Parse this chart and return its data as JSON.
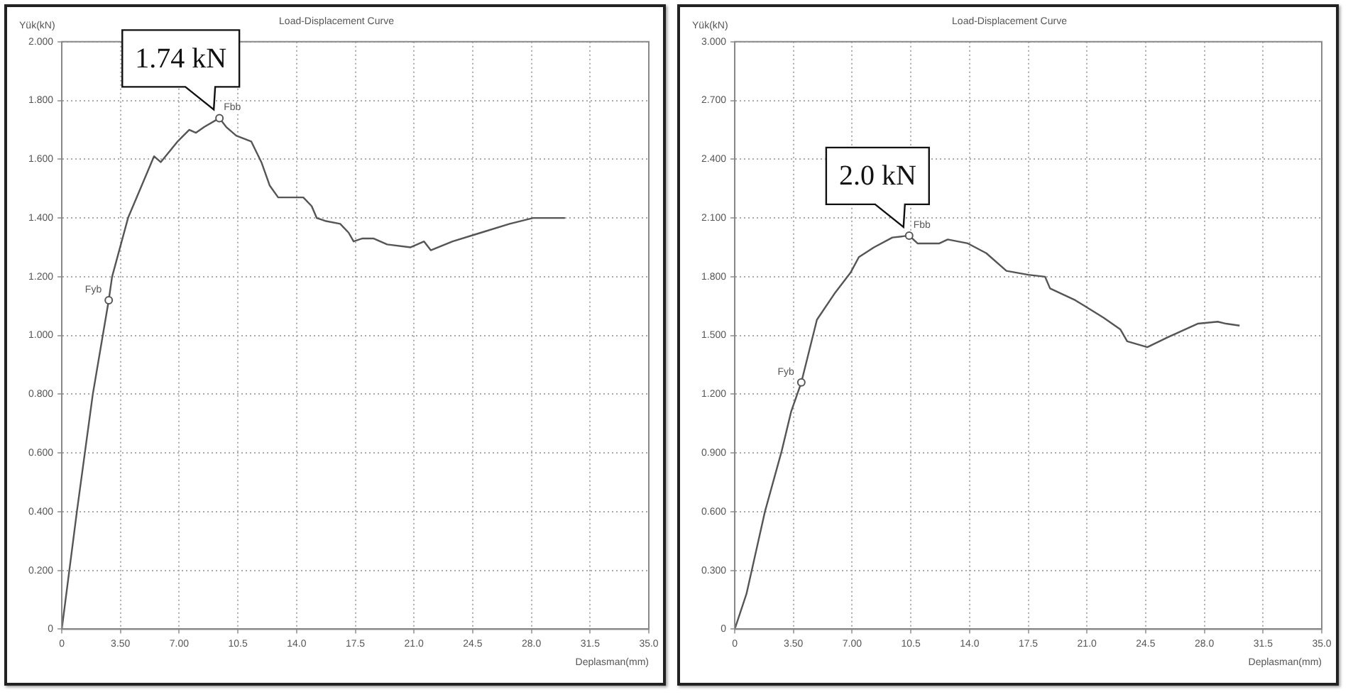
{
  "chart_data": [
    {
      "type": "line",
      "title": "Load-Displacement Curve",
      "xlabel": "Deplasman(mm)",
      "ylabel": "Yük(kN)",
      "marker": "none",
      "grid": true,
      "xlim": [
        0,
        35
      ],
      "xticks": [
        0,
        {
          "value": 3.5,
          "label": "3.50"
        },
        {
          "value": 7,
          "label": "7.00"
        },
        10.5,
        {
          "value": 14,
          "label": "14.0"
        },
        17.5,
        {
          "value": 21,
          "label": "21.0"
        },
        24.5,
        {
          "value": 28,
          "label": "28.0"
        },
        31.5,
        {
          "value": 35,
          "label": "35.0"
        }
      ],
      "ylim": [
        0,
        2
      ],
      "yticks": [
        0,
        {
          "value": 0.2,
          "label": "0.200"
        },
        {
          "value": 0.4,
          "label": "0.400"
        },
        {
          "value": 0.6,
          "label": "0.600"
        },
        {
          "value": 0.8,
          "label": "0.800"
        },
        {
          "value": 1,
          "label": "1.000"
        },
        {
          "value": 1.2,
          "label": "1.200"
        },
        {
          "value": 1.4,
          "label": "1.400"
        },
        {
          "value": 1.6,
          "label": "1.600"
        },
        {
          "value": 1.8,
          "label": "1.800"
        },
        {
          "value": 2,
          "label": "2.000"
        }
      ],
      "series": [
        {
          "color": "#555555",
          "x": [
            0,
            0.9,
            1.85,
            2.8,
            3.0,
            3.95,
            5.5,
            5.9,
            6.9,
            7.6,
            8.0,
            8.5,
            9.4,
            9.8,
            10.4,
            11.3,
            11.9,
            12.4,
            12.9,
            13.5,
            14.4,
            14.9,
            15.2,
            15.7,
            16.6,
            17.1,
            17.4,
            17.9,
            18.6,
            19.4,
            20.8,
            21.6,
            22.0,
            23.3,
            25.0,
            26.7,
            28.1,
            30.0
          ],
          "values": [
            0,
            0.4,
            0.8,
            1.12,
            1.2,
            1.4,
            1.61,
            1.59,
            1.66,
            1.7,
            1.69,
            1.71,
            1.74,
            1.71,
            1.68,
            1.66,
            1.59,
            1.51,
            1.47,
            1.47,
            1.47,
            1.44,
            1.4,
            1.39,
            1.38,
            1.35,
            1.32,
            1.33,
            1.33,
            1.31,
            1.3,
            1.32,
            1.29,
            1.32,
            1.35,
            1.38,
            1.4,
            1.4
          ]
        }
      ],
      "annotations": [
        {
          "text": "1.74 kN",
          "x": 9.4,
          "y": 1.74
        },
        {
          "text": "Fbb",
          "x": 9.4,
          "y": 1.74
        },
        {
          "text": "Fyb",
          "x": 2.8,
          "y": 1.12
        }
      ]
    },
    {
      "type": "line",
      "title": "Load-Displacement Curve",
      "xlabel": "Deplasman(mm)",
      "ylabel": "Yük(kN)",
      "marker": "none",
      "grid": true,
      "xlim": [
        0,
        35
      ],
      "xticks": [
        0,
        {
          "value": 3.5,
          "label": "3.50"
        },
        {
          "value": 7,
          "label": "7.00"
        },
        10.5,
        {
          "value": 14,
          "label": "14.0"
        },
        17.5,
        {
          "value": 21,
          "label": "21.0"
        },
        24.5,
        {
          "value": 28,
          "label": "28.0"
        },
        31.5,
        {
          "value": 35,
          "label": "35.0"
        }
      ],
      "ylim": [
        0,
        3
      ],
      "yticks": [
        0,
        {
          "value": 0.3,
          "label": "0.300"
        },
        {
          "value": 0.6,
          "label": "0.600"
        },
        {
          "value": 0.9,
          "label": "0.900"
        },
        {
          "value": 1.2,
          "label": "1.200"
        },
        {
          "value": 1.5,
          "label": "1.500"
        },
        {
          "value": 1.8,
          "label": "1.800"
        },
        {
          "value": 2.1,
          "label": "2.100"
        },
        {
          "value": 2.4,
          "label": "2.400"
        },
        {
          "value": 2.7,
          "label": "2.700"
        },
        {
          "value": 3,
          "label": "3.000"
        }
      ],
      "series": [
        {
          "color": "#555555",
          "x": [
            0,
            0.7,
            1.8,
            2.8,
            3.36,
            3.97,
            4.9,
            6.0,
            6.9,
            7.4,
            8.3,
            9.4,
            10.4,
            10.9,
            12.2,
            12.7,
            13.9,
            15.0,
            16.2,
            17.5,
            18.5,
            18.8,
            20.3,
            22.0,
            23.0,
            23.4,
            24.6,
            25.8,
            27.6,
            28.8,
            29.3,
            30.1
          ],
          "values": [
            0,
            0.18,
            0.6,
            0.91,
            1.11,
            1.26,
            1.58,
            1.72,
            1.82,
            1.9,
            1.95,
            2.0,
            2.01,
            1.97,
            1.97,
            1.99,
            1.97,
            1.92,
            1.83,
            1.81,
            1.8,
            1.74,
            1.68,
            1.59,
            1.53,
            1.47,
            1.44,
            1.49,
            1.56,
            1.57,
            1.56,
            1.55
          ]
        }
      ],
      "annotations": [
        {
          "text": "2.0 kN",
          "x": 10.4,
          "y": 2.01
        },
        {
          "text": "Fbb",
          "x": 10.4,
          "y": 2.01
        },
        {
          "text": "Fyb",
          "x": 3.97,
          "y": 1.26
        }
      ]
    }
  ]
}
